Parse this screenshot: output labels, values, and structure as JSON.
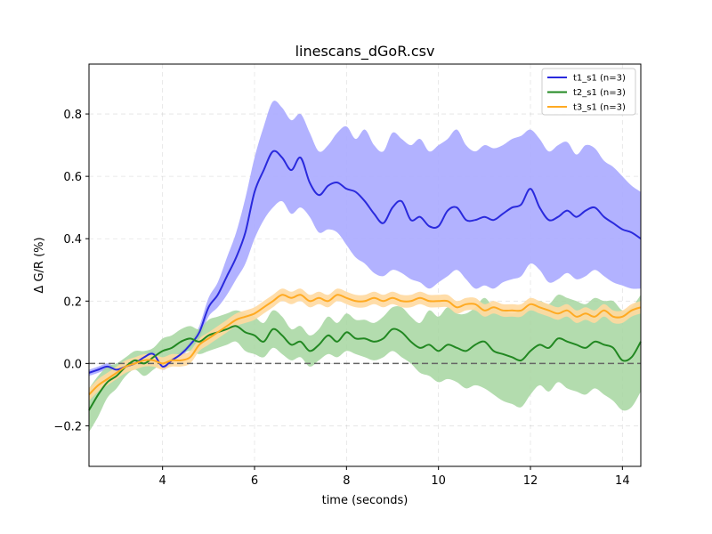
{
  "chart_data": {
    "type": "line",
    "title": "linescans_dGoR.csv",
    "xlabel": "time (seconds)",
    "ylabel": "Δ G/R (%)",
    "xlim": [
      2.4,
      14.4
    ],
    "ylim": [
      -0.33,
      0.96
    ],
    "xticks": [
      4,
      6,
      8,
      10,
      12,
      14
    ],
    "yticks": [
      -0.2,
      0.0,
      0.2,
      0.4,
      0.6,
      0.8
    ],
    "xtick_labels": [
      "4",
      "6",
      "8",
      "10",
      "12",
      "14"
    ],
    "ytick_labels": [
      "−0.2",
      "0.0",
      "0.2",
      "0.4",
      "0.6",
      "0.8"
    ],
    "grid": true,
    "baseline": 0.0,
    "legend_position": "top-right",
    "x": [
      2.4,
      2.6,
      2.8,
      3.0,
      3.2,
      3.4,
      3.6,
      3.8,
      4.0,
      4.2,
      4.4,
      4.6,
      4.8,
      5.0,
      5.2,
      5.4,
      5.6,
      5.8,
      6.0,
      6.2,
      6.4,
      6.6,
      6.8,
      7.0,
      7.2,
      7.4,
      7.6,
      7.8,
      8.0,
      8.2,
      8.4,
      8.6,
      8.8,
      9.0,
      9.2,
      9.4,
      9.6,
      9.8,
      10.0,
      10.2,
      10.4,
      10.6,
      10.8,
      11.0,
      11.2,
      11.4,
      11.6,
      11.8,
      12.0,
      12.2,
      12.4,
      12.6,
      12.8,
      13.0,
      13.2,
      13.4,
      13.6,
      13.8,
      14.0,
      14.2,
      14.4
    ],
    "series": [
      {
        "name": "t1_s1 (n=3)",
        "color": "#2a2add",
        "fill": "#aaaaff",
        "mean": [
          -0.03,
          -0.02,
          -0.01,
          -0.02,
          -0.01,
          0.0,
          0.02,
          0.03,
          -0.01,
          0.01,
          0.03,
          0.06,
          0.1,
          0.18,
          0.22,
          0.28,
          0.34,
          0.42,
          0.55,
          0.62,
          0.68,
          0.66,
          0.62,
          0.66,
          0.58,
          0.54,
          0.57,
          0.58,
          0.56,
          0.55,
          0.52,
          0.48,
          0.45,
          0.5,
          0.52,
          0.46,
          0.47,
          0.44,
          0.44,
          0.49,
          0.5,
          0.46,
          0.46,
          0.47,
          0.46,
          0.48,
          0.5,
          0.51,
          0.56,
          0.5,
          0.46,
          0.47,
          0.49,
          0.47,
          0.49,
          0.5,
          0.47,
          0.45,
          0.43,
          0.42,
          0.4
        ],
        "lower": [
          -0.04,
          -0.03,
          -0.02,
          -0.03,
          -0.02,
          -0.01,
          0.01,
          0.02,
          -0.02,
          0.0,
          0.02,
          0.05,
          0.08,
          0.15,
          0.18,
          0.22,
          0.27,
          0.32,
          0.4,
          0.46,
          0.5,
          0.52,
          0.48,
          0.5,
          0.47,
          0.42,
          0.43,
          0.42,
          0.38,
          0.34,
          0.32,
          0.29,
          0.28,
          0.3,
          0.29,
          0.27,
          0.26,
          0.24,
          0.26,
          0.28,
          0.3,
          0.27,
          0.24,
          0.25,
          0.24,
          0.26,
          0.27,
          0.28,
          0.32,
          0.3,
          0.26,
          0.27,
          0.29,
          0.27,
          0.28,
          0.3,
          0.28,
          0.26,
          0.25,
          0.24,
          0.24
        ],
        "upper": [
          -0.02,
          -0.01,
          0.0,
          -0.01,
          0.0,
          0.01,
          0.03,
          0.04,
          0.01,
          0.02,
          0.04,
          0.07,
          0.12,
          0.21,
          0.26,
          0.34,
          0.42,
          0.53,
          0.66,
          0.76,
          0.84,
          0.82,
          0.78,
          0.8,
          0.74,
          0.68,
          0.7,
          0.74,
          0.76,
          0.72,
          0.75,
          0.7,
          0.68,
          0.74,
          0.72,
          0.7,
          0.72,
          0.68,
          0.7,
          0.72,
          0.75,
          0.7,
          0.68,
          0.7,
          0.69,
          0.7,
          0.72,
          0.73,
          0.75,
          0.72,
          0.68,
          0.7,
          0.71,
          0.67,
          0.7,
          0.69,
          0.65,
          0.63,
          0.6,
          0.57,
          0.55
        ]
      },
      {
        "name": "t2_s1 (n=3)",
        "color": "#228822",
        "fill": "#a6d6a0",
        "mean": [
          -0.15,
          -0.1,
          -0.06,
          -0.04,
          -0.01,
          0.01,
          0.0,
          0.02,
          0.04,
          0.05,
          0.07,
          0.08,
          0.07,
          0.09,
          0.1,
          0.11,
          0.12,
          0.1,
          0.09,
          0.07,
          0.11,
          0.09,
          0.06,
          0.07,
          0.04,
          0.06,
          0.09,
          0.07,
          0.1,
          0.08,
          0.08,
          0.07,
          0.08,
          0.11,
          0.1,
          0.07,
          0.05,
          0.06,
          0.04,
          0.06,
          0.05,
          0.04,
          0.06,
          0.07,
          0.04,
          0.03,
          0.02,
          0.01,
          0.04,
          0.06,
          0.05,
          0.08,
          0.07,
          0.06,
          0.05,
          0.07,
          0.06,
          0.05,
          0.01,
          0.02,
          0.07
        ],
        "lower": [
          -0.22,
          -0.17,
          -0.11,
          -0.08,
          -0.04,
          -0.02,
          -0.04,
          -0.02,
          0.0,
          0.01,
          0.03,
          0.04,
          0.03,
          0.04,
          0.05,
          0.06,
          0.07,
          0.04,
          0.03,
          0.02,
          0.05,
          0.03,
          0.01,
          0.02,
          -0.01,
          0.01,
          0.03,
          0.02,
          0.04,
          0.03,
          0.02,
          0.01,
          0.02,
          0.04,
          0.02,
          0.0,
          -0.03,
          -0.04,
          -0.06,
          -0.05,
          -0.06,
          -0.08,
          -0.07,
          -0.08,
          -0.1,
          -0.12,
          -0.13,
          -0.14,
          -0.1,
          -0.07,
          -0.09,
          -0.06,
          -0.08,
          -0.09,
          -0.1,
          -0.08,
          -0.1,
          -0.12,
          -0.15,
          -0.14,
          -0.09
        ],
        "upper": [
          -0.08,
          -0.04,
          -0.01,
          0.0,
          0.02,
          0.04,
          0.04,
          0.05,
          0.08,
          0.09,
          0.11,
          0.12,
          0.11,
          0.14,
          0.15,
          0.16,
          0.17,
          0.16,
          0.15,
          0.13,
          0.17,
          0.15,
          0.11,
          0.12,
          0.09,
          0.11,
          0.15,
          0.13,
          0.16,
          0.14,
          0.14,
          0.13,
          0.15,
          0.18,
          0.18,
          0.15,
          0.13,
          0.17,
          0.15,
          0.18,
          0.16,
          0.16,
          0.18,
          0.21,
          0.18,
          0.17,
          0.16,
          0.17,
          0.18,
          0.2,
          0.19,
          0.22,
          0.21,
          0.2,
          0.19,
          0.21,
          0.2,
          0.2,
          0.17,
          0.18,
          0.22
        ]
      },
      {
        "name": "t3_s1 (n=3)",
        "color": "#ffaa22",
        "fill": "#ffd9a0",
        "mean": [
          -0.1,
          -0.07,
          -0.05,
          -0.03,
          -0.01,
          0.0,
          0.01,
          0.01,
          0.0,
          0.01,
          0.01,
          0.02,
          0.06,
          0.08,
          0.1,
          0.12,
          0.14,
          0.15,
          0.16,
          0.18,
          0.2,
          0.22,
          0.21,
          0.22,
          0.2,
          0.21,
          0.2,
          0.22,
          0.21,
          0.2,
          0.2,
          0.21,
          0.2,
          0.21,
          0.2,
          0.2,
          0.21,
          0.2,
          0.2,
          0.2,
          0.18,
          0.19,
          0.19,
          0.17,
          0.18,
          0.17,
          0.17,
          0.17,
          0.19,
          0.18,
          0.17,
          0.16,
          0.17,
          0.15,
          0.16,
          0.15,
          0.17,
          0.15,
          0.15,
          0.17,
          0.18
        ],
        "lower": [
          -0.12,
          -0.09,
          -0.07,
          -0.05,
          -0.03,
          -0.02,
          -0.01,
          -0.01,
          -0.02,
          -0.01,
          -0.01,
          0.0,
          0.04,
          0.06,
          0.08,
          0.1,
          0.12,
          0.13,
          0.14,
          0.16,
          0.18,
          0.2,
          0.19,
          0.2,
          0.18,
          0.19,
          0.18,
          0.2,
          0.19,
          0.18,
          0.18,
          0.19,
          0.18,
          0.19,
          0.18,
          0.18,
          0.19,
          0.18,
          0.18,
          0.18,
          0.16,
          0.17,
          0.17,
          0.15,
          0.16,
          0.15,
          0.15,
          0.15,
          0.17,
          0.16,
          0.15,
          0.14,
          0.15,
          0.13,
          0.14,
          0.13,
          0.15,
          0.13,
          0.13,
          0.15,
          0.16
        ],
        "upper": [
          -0.08,
          -0.05,
          -0.03,
          -0.01,
          0.01,
          0.02,
          0.03,
          0.03,
          0.02,
          0.03,
          0.03,
          0.04,
          0.08,
          0.1,
          0.12,
          0.14,
          0.16,
          0.17,
          0.18,
          0.2,
          0.22,
          0.24,
          0.23,
          0.24,
          0.22,
          0.23,
          0.22,
          0.24,
          0.23,
          0.22,
          0.22,
          0.23,
          0.22,
          0.23,
          0.22,
          0.22,
          0.23,
          0.22,
          0.22,
          0.22,
          0.2,
          0.21,
          0.21,
          0.19,
          0.2,
          0.19,
          0.19,
          0.19,
          0.21,
          0.2,
          0.19,
          0.18,
          0.19,
          0.17,
          0.18,
          0.17,
          0.19,
          0.17,
          0.17,
          0.19,
          0.2
        ]
      }
    ]
  }
}
